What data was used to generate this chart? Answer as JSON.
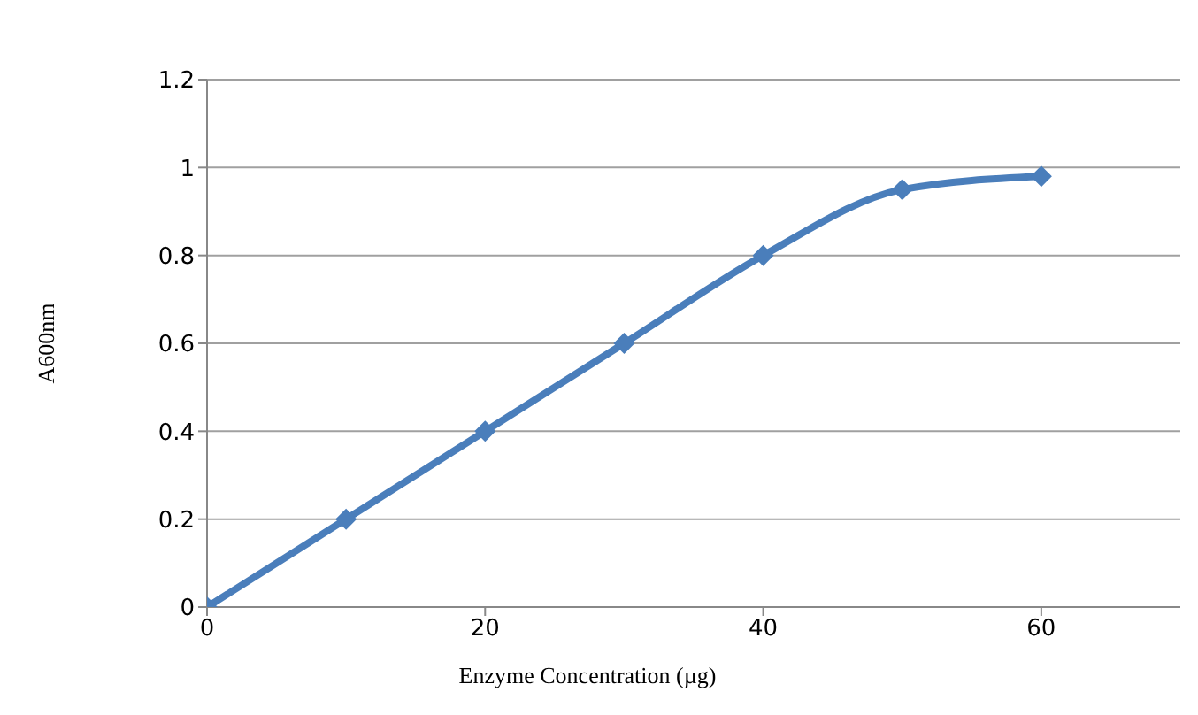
{
  "chart_data": {
    "type": "line",
    "xlabel": "Enzyme Concentration (µg)",
    "ylabel": "A600nm",
    "x": [
      0,
      10,
      20,
      30,
      40,
      50,
      60
    ],
    "series": [
      {
        "color": "#4a7ebb",
        "values": [
          0,
          0.2,
          0.4,
          0.6,
          0.8,
          0.95,
          0.98
        ]
      }
    ],
    "xlim": [
      0,
      70
    ],
    "xticks": [
      0,
      20,
      40,
      60
    ],
    "ylim": [
      0,
      1.2
    ],
    "yticks": [
      0,
      0.2,
      0.4,
      0.6,
      0.8,
      1,
      1.2
    ],
    "grid": "y",
    "legend": false,
    "marker": "diamond",
    "line_style": "solid"
  }
}
